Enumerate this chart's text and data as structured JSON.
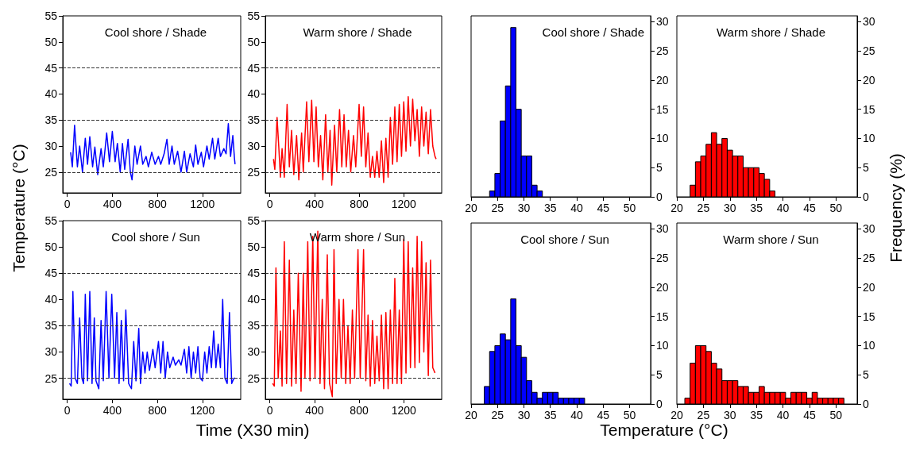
{
  "chart_data": [
    {
      "type": "line",
      "title": "Cool shore / Shade",
      "ylabel": "Temperature (°C)",
      "color": "#0000ff",
      "xlim": [
        -40,
        1540
      ],
      "xticks": [
        0,
        400,
        800,
        1200
      ],
      "ylim": [
        21,
        55
      ],
      "yticks": [
        25,
        30,
        35,
        40,
        45,
        50,
        55
      ],
      "ref_lines": [
        {
          "axis": "y",
          "value": 25,
          "line_style": "dashed"
        },
        {
          "axis": "y",
          "value": 35,
          "line_style": "dashed"
        },
        {
          "axis": "y",
          "value": 45,
          "line_style": "dashed"
        }
      ],
      "x": [
        30,
        45,
        65,
        90,
        110,
        135,
        160,
        180,
        200,
        225,
        245,
        270,
        300,
        320,
        350,
        375,
        400,
        425,
        445,
        470,
        490,
        510,
        540,
        560,
        575,
        600,
        620,
        650,
        670,
        700,
        720,
        750,
        780,
        810,
        830,
        860,
        885,
        905,
        930,
        950,
        980,
        1010,
        1040,
        1060,
        1090,
        1120,
        1140,
        1160,
        1190,
        1210,
        1240,
        1260,
        1290,
        1310,
        1340,
        1360,
        1390,
        1410,
        1430,
        1450,
        1470,
        1485,
        1490
      ],
      "values": [
        28.8,
        26,
        34,
        26,
        30,
        25,
        31.5,
        26.5,
        31.8,
        26,
        29.8,
        24.5,
        29.5,
        26,
        32.5,
        27,
        32.8,
        27,
        30.5,
        25,
        30.5,
        25.5,
        31.3,
        25,
        23.5,
        30,
        26.5,
        30,
        26.5,
        28,
        26,
        28.8,
        26.5,
        28,
        26.5,
        28.5,
        31.3,
        26.5,
        30,
        26.5,
        29,
        25,
        29,
        25,
        28.5,
        26,
        30.2,
        26.5,
        28.8,
        26,
        30,
        27.5,
        31.5,
        27.5,
        31.5,
        28,
        29.5,
        28.5,
        34.3,
        28,
        32,
        27.5,
        26.5
      ]
    },
    {
      "type": "line",
      "title": "Warm shore / Shade",
      "color": "#ff0000",
      "xlim": [
        -40,
        1540
      ],
      "xticks": [
        0,
        400,
        800,
        1200
      ],
      "ylim": [
        21,
        55
      ],
      "yticks": [
        25,
        30,
        35,
        40,
        45,
        50,
        55
      ],
      "ref_lines": [
        {
          "axis": "y",
          "value": 25,
          "line_style": "dashed"
        },
        {
          "axis": "y",
          "value": 35,
          "line_style": "dashed"
        },
        {
          "axis": "y",
          "value": 45,
          "line_style": "dashed"
        }
      ],
      "x": [
        33,
        45,
        65,
        80,
        95,
        110,
        130,
        155,
        175,
        195,
        215,
        240,
        260,
        285,
        300,
        330,
        350,
        375,
        395,
        415,
        435,
        455,
        475,
        500,
        520,
        540,
        555,
        580,
        600,
        625,
        645,
        665,
        685,
        705,
        725,
        750,
        770,
        800,
        820,
        840,
        860,
        880,
        900,
        920,
        940,
        960,
        980,
        1000,
        1020,
        1040,
        1060,
        1080,
        1100,
        1120,
        1140,
        1160,
        1180,
        1200,
        1220,
        1240,
        1260,
        1280,
        1300,
        1320,
        1340,
        1360,
        1380,
        1400,
        1420,
        1440,
        1460,
        1480,
        1490
      ],
      "values": [
        27.5,
        25.5,
        35.5,
        30,
        24,
        29.5,
        24,
        38,
        26,
        33,
        24.5,
        32,
        23.5,
        32.5,
        25,
        38.5,
        27,
        38.8,
        27,
        37.5,
        26,
        32,
        23.5,
        36,
        25,
        33,
        22.5,
        34,
        25,
        37,
        26,
        36,
        26,
        33,
        25,
        32,
        26,
        38,
        28,
        37.5,
        26,
        32.5,
        24,
        28,
        24,
        29,
        24,
        31,
        23,
        31.5,
        24,
        35.5,
        26.5,
        37.5,
        27,
        38,
        28,
        38.5,
        29,
        39.5,
        30,
        39,
        31,
        37,
        28,
        37.5,
        30,
        36.5,
        28.5,
        37,
        30,
        28,
        27.5
      ]
    },
    {
      "type": "line",
      "title": "Cool shore / Sun",
      "xlabel": "Time (X30 min)",
      "color": "#0000ff",
      "xlim": [
        -40,
        1540
      ],
      "xticks": [
        0,
        400,
        800,
        1200
      ],
      "ylim": [
        21,
        55
      ],
      "yticks": [
        25,
        30,
        35,
        40,
        45,
        50,
        55
      ],
      "ref_lines": [
        {
          "axis": "y",
          "value": 25,
          "line_style": "dashed"
        },
        {
          "axis": "y",
          "value": 35,
          "line_style": "dashed"
        },
        {
          "axis": "y",
          "value": 45,
          "line_style": "dashed"
        }
      ],
      "x": [
        20,
        35,
        50,
        70,
        90,
        110,
        130,
        145,
        160,
        180,
        200,
        220,
        240,
        255,
        280,
        300,
        320,
        345,
        370,
        395,
        420,
        440,
        460,
        480,
        500,
        520,
        545,
        570,
        590,
        610,
        635,
        650,
        670,
        690,
        710,
        730,
        760,
        780,
        810,
        830,
        850,
        870,
        890,
        910,
        940,
        960,
        990,
        1010,
        1040,
        1060,
        1080,
        1100,
        1120,
        1140,
        1160,
        1180,
        1200,
        1220,
        1240,
        1260,
        1280,
        1300,
        1320,
        1340,
        1360,
        1380,
        1400,
        1420,
        1440,
        1460,
        1480,
        1490
      ],
      "values": [
        24,
        23.5,
        41.5,
        25,
        24,
        36.5,
        25,
        24,
        41,
        24.5,
        41.5,
        24,
        36.5,
        24.5,
        23,
        36,
        24.5,
        41.5,
        25,
        41,
        25,
        37.5,
        24,
        36,
        24.5,
        38,
        24,
        23,
        32,
        24.5,
        34.5,
        24,
        30,
        26,
        30,
        26.5,
        30.5,
        27,
        32,
        26,
        32,
        25,
        30,
        27,
        29,
        27.5,
        28.5,
        27.5,
        30.5,
        26,
        31,
        25,
        30,
        26,
        31,
        25,
        24.5,
        30,
        26,
        31,
        27,
        34,
        27,
        31.5,
        27,
        40,
        25,
        24,
        37.5,
        24,
        25,
        25
      ]
    },
    {
      "type": "line",
      "title": "Warm shore / Sun",
      "color": "#ff0000",
      "xlim": [
        -40,
        1540
      ],
      "xticks": [
        0,
        400,
        800,
        1200
      ],
      "ylim": [
        21,
        55
      ],
      "yticks": [
        25,
        30,
        35,
        40,
        45,
        50,
        55
      ],
      "ref_lines": [
        {
          "axis": "y",
          "value": 25,
          "line_style": "dashed"
        },
        {
          "axis": "y",
          "value": 35,
          "line_style": "dashed"
        },
        {
          "axis": "y",
          "value": 45,
          "line_style": "dashed"
        }
      ],
      "x": [
        25,
        40,
        55,
        75,
        95,
        110,
        130,
        150,
        175,
        195,
        215,
        235,
        255,
        280,
        300,
        315,
        340,
        360,
        385,
        405,
        430,
        450,
        470,
        490,
        515,
        535,
        560,
        575,
        595,
        620,
        640,
        660,
        680,
        700,
        720,
        740,
        760,
        790,
        810,
        840,
        860,
        880,
        900,
        920,
        940,
        960,
        980,
        1000,
        1020,
        1040,
        1060,
        1080,
        1100,
        1120,
        1140,
        1160,
        1180,
        1200,
        1220,
        1240,
        1260,
        1280,
        1300,
        1320,
        1340,
        1360,
        1380,
        1400,
        1420,
        1440,
        1460,
        1480
      ],
      "values": [
        24,
        23.5,
        46,
        25,
        34,
        23.5,
        51,
        24,
        47.5,
        23.5,
        38,
        24,
        45,
        22.5,
        45,
        25,
        51,
        24.5,
        52,
        25,
        53,
        24,
        40,
        23,
        48.5,
        24,
        21.5,
        49.5,
        24,
        40,
        25,
        40,
        24,
        35,
        24,
        38,
        25,
        49.5,
        25,
        49.5,
        24.5,
        37,
        23.5,
        36,
        24,
        33,
        24.5,
        37,
        23,
        37.5,
        23,
        38,
        24,
        44,
        24,
        38,
        24,
        51.5,
        26,
        51,
        27,
        46,
        27,
        52,
        28,
        51,
        30,
        47,
        25.5,
        47.5,
        27,
        26
      ]
    },
    {
      "type": "histogram",
      "title": "Cool shore / Shade",
      "color": "#0000ff",
      "xlim": [
        20,
        54
      ],
      "xticks": [
        20,
        25,
        30,
        35,
        40,
        45,
        50
      ],
      "ylim": [
        0,
        31
      ],
      "yticks": [
        0,
        5,
        10,
        15,
        20,
        25,
        30
      ],
      "bins": [
        23.5,
        24.5,
        25.5,
        26.5,
        27.5,
        28.5,
        29.5,
        30.5,
        31.5,
        32.5,
        33.5
      ],
      "values": [
        1,
        4,
        13,
        19,
        29,
        15,
        7,
        7,
        2,
        1
      ]
    },
    {
      "type": "histogram",
      "title": "Warm shore / Shade",
      "ylabel": "Frequency (%)",
      "color": "#ff0000",
      "xlim": [
        20,
        54
      ],
      "xticks": [
        20,
        25,
        30,
        35,
        40,
        45,
        50
      ],
      "ylim": [
        0,
        31
      ],
      "yticks": [
        0,
        5,
        10,
        15,
        20,
        25,
        30
      ],
      "bins": [
        22.5,
        23.5,
        24.5,
        25.5,
        26.5,
        27.5,
        28.5,
        29.5,
        30.5,
        31.5,
        32.5,
        33.5,
        34.5,
        35.5,
        36.5,
        37.5,
        38.5
      ],
      "values": [
        2,
        6,
        7,
        9,
        11,
        9,
        10,
        8,
        7,
        7,
        5,
        5,
        5,
        4,
        3,
        1
      ]
    },
    {
      "type": "histogram",
      "title": "Cool shore / Sun",
      "xlabel": "Temperature (°C)",
      "color": "#0000ff",
      "xlim": [
        20,
        54
      ],
      "xticks": [
        20,
        25,
        30,
        35,
        40,
        45,
        50
      ],
      "ylim": [
        0,
        31
      ],
      "yticks": [
        0,
        5,
        10,
        15,
        20,
        25,
        30
      ],
      "bins": [
        22.5,
        23.5,
        24.5,
        25.5,
        26.5,
        27.5,
        28.5,
        29.5,
        30.5,
        31.5,
        32.5,
        33.5,
        34.5,
        35.5,
        36.5,
        37.5,
        38.5,
        39.5,
        40.5,
        41.5
      ],
      "values": [
        3,
        9,
        10,
        12,
        11,
        18,
        10,
        8,
        4,
        2,
        1,
        2,
        2,
        2,
        1,
        1,
        1,
        1,
        1
      ]
    },
    {
      "type": "histogram",
      "title": "Warm shore / Sun",
      "color": "#ff0000",
      "xlim": [
        20,
        54
      ],
      "xticks": [
        20,
        25,
        30,
        35,
        40,
        45,
        50
      ],
      "ylim": [
        0,
        31
      ],
      "yticks": [
        0,
        5,
        10,
        15,
        20,
        25,
        30
      ],
      "bins": [
        21.5,
        22.5,
        23.5,
        24.5,
        25.5,
        26.5,
        27.5,
        28.5,
        29.5,
        30.5,
        31.5,
        32.5,
        33.5,
        34.5,
        35.5,
        36.5,
        37.5,
        38.5,
        39.5,
        40.5,
        41.5,
        42.5,
        43.5,
        44.5,
        45.5,
        46.5,
        47.5,
        48.5,
        49.5,
        50.5,
        51.5
      ],
      "values": [
        1,
        7,
        10,
        10,
        9,
        7,
        6,
        4,
        4,
        4,
        3,
        3,
        2,
        2,
        3,
        2,
        2,
        2,
        2,
        1,
        2,
        2,
        2,
        1,
        2,
        1,
        1,
        1,
        1,
        1
      ]
    }
  ]
}
